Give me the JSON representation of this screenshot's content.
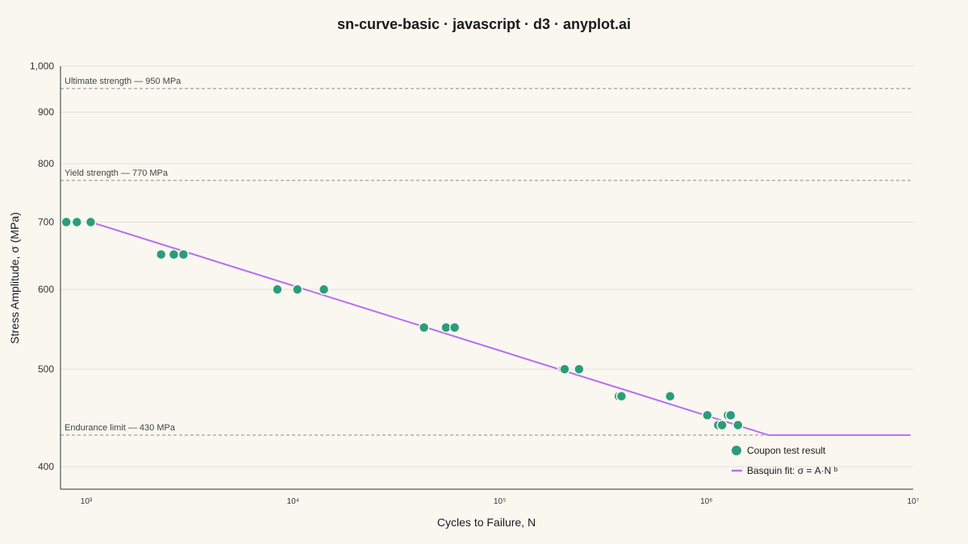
{
  "chart_data": {
    "type": "scatter",
    "title": "sn-curve-basic · javascript · d3 · anyplot.ai",
    "xlabel": "Cycles to Failure, N",
    "ylabel": "Stress Amplitude, σ (MPa)",
    "x_scale": "log",
    "y_scale": "log",
    "xlim": [
      750,
      10000000
    ],
    "ylim": [
      380,
      1000
    ],
    "x_ticks": [
      {
        "value": 1000,
        "label": "10³"
      },
      {
        "value": 10000,
        "label": "10⁴"
      },
      {
        "value": 100000,
        "label": "10⁵"
      },
      {
        "value": 1000000,
        "label": "10⁶"
      },
      {
        "value": 10000000,
        "label": "10⁷"
      }
    ],
    "y_ticks": [
      {
        "value": 400,
        "label": "400"
      },
      {
        "value": 500,
        "label": "500"
      },
      {
        "value": 600,
        "label": "600"
      },
      {
        "value": 700,
        "label": "700"
      },
      {
        "value": 800,
        "label": "800"
      },
      {
        "value": 900,
        "label": "900"
      },
      {
        "value": 1000,
        "label": "1,000"
      }
    ],
    "grid": true,
    "reference_lines": [
      {
        "value": 950,
        "label": "Ultimate strength — 950 MPa"
      },
      {
        "value": 770,
        "label": "Yield strength — 770 MPa"
      },
      {
        "value": 430,
        "label": "Endurance limit — 430 MPa"
      }
    ],
    "series": [
      {
        "name": "Coupon test result",
        "type": "scatter",
        "color": "#2a9d78",
        "points": [
          {
            "x": 800,
            "y": 700
          },
          {
            "x": 900,
            "y": 700
          },
          {
            "x": 1050,
            "y": 700
          },
          {
            "x": 2300,
            "y": 650
          },
          {
            "x": 2650,
            "y": 650
          },
          {
            "x": 2950,
            "y": 650
          },
          {
            "x": 8400,
            "y": 600
          },
          {
            "x": 10500,
            "y": 600
          },
          {
            "x": 14100,
            "y": 600
          },
          {
            "x": 43000,
            "y": 550
          },
          {
            "x": 55000,
            "y": 550
          },
          {
            "x": 60500,
            "y": 550
          },
          {
            "x": 202000,
            "y": 500
          },
          {
            "x": 206000,
            "y": 500
          },
          {
            "x": 242000,
            "y": 500
          },
          {
            "x": 377000,
            "y": 470
          },
          {
            "x": 388000,
            "y": 470
          },
          {
            "x": 667000,
            "y": 470
          },
          {
            "x": 1010000,
            "y": 450
          },
          {
            "x": 1270000,
            "y": 450
          },
          {
            "x": 1310000,
            "y": 450
          },
          {
            "x": 1140000,
            "y": 440
          },
          {
            "x": 1190000,
            "y": 440
          },
          {
            "x": 1420000,
            "y": 440
          }
        ]
      },
      {
        "name": "Basquin fit: σ = A·N ᵇ",
        "type": "line",
        "color": "#b86ef2",
        "points": [
          {
            "x": 1050,
            "y": 700
          },
          {
            "x": 2000000,
            "y": 430
          },
          {
            "x": 9700000,
            "y": 430
          }
        ]
      }
    ],
    "legend_position": "bottom-right"
  }
}
